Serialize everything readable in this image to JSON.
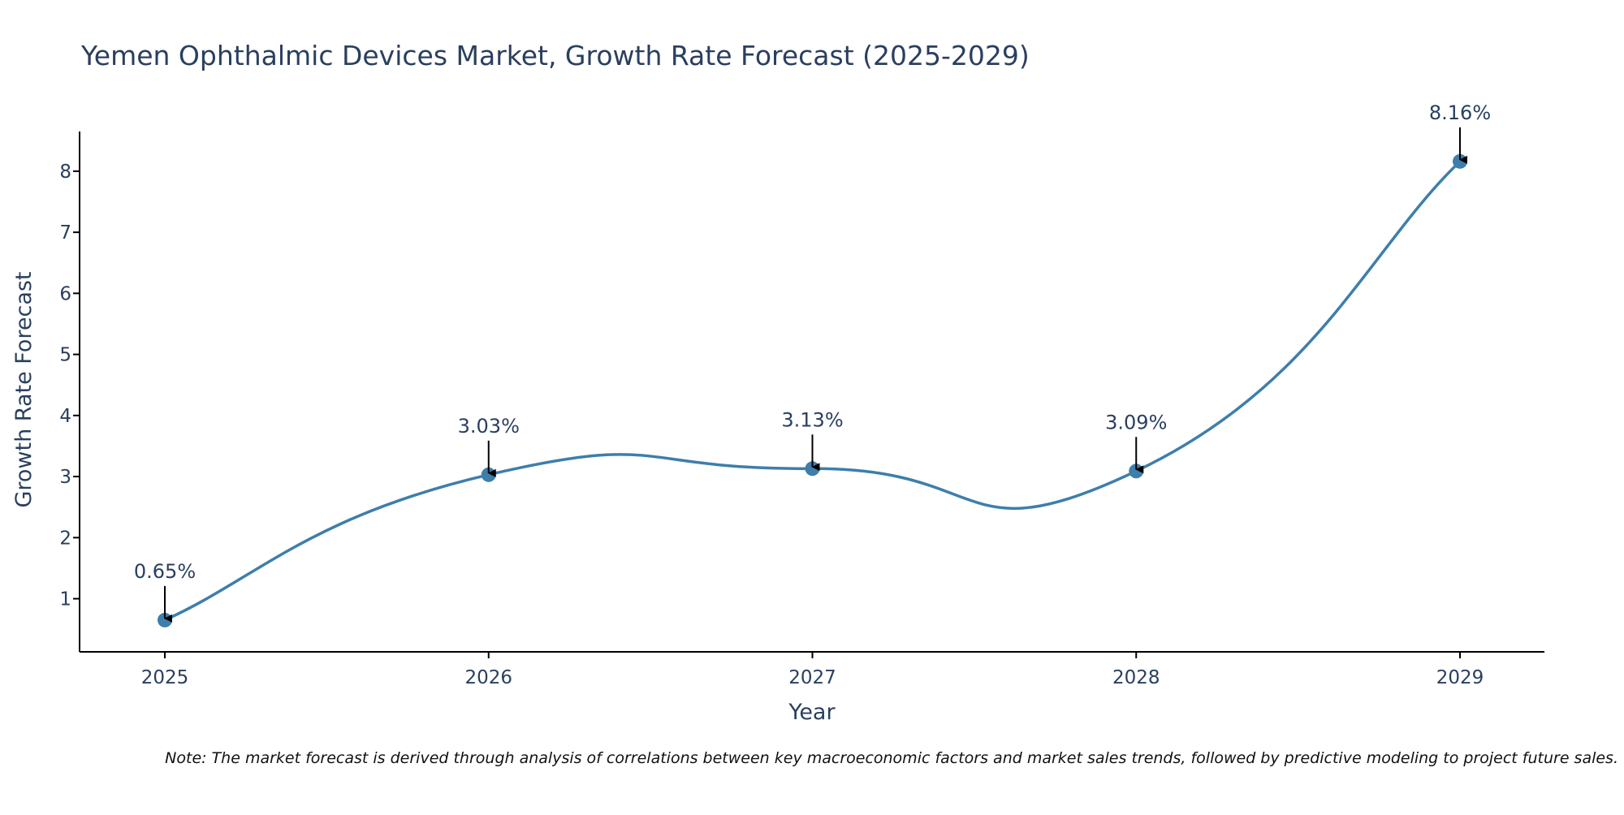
{
  "chart_data": {
    "type": "line",
    "title": "Yemen Ophthalmic Devices Market, Growth Rate Forecast (2025-2029)",
    "xlabel": "Year",
    "ylabel": "Growth Rate Forecast",
    "categories": [
      "2025",
      "2026",
      "2027",
      "2028",
      "2029"
    ],
    "values": [
      0.65,
      3.03,
      3.13,
      3.09,
      8.16
    ],
    "data_labels": [
      "0.65%",
      "3.03%",
      "3.13%",
      "3.09%",
      "8.16%"
    ],
    "yticks": [
      "1",
      "2",
      "3",
      "4",
      "5",
      "6",
      "7",
      "8"
    ],
    "ytick_values": [
      1,
      2,
      3,
      4,
      5,
      6,
      7,
      8
    ],
    "ylim": [
      0.13,
      8.65
    ],
    "grid": false,
    "legend": "none",
    "line_color": "#3d7eab",
    "marker_color": "#3d7eab",
    "arrow_color": "#000000",
    "axis_color": "#000000",
    "text_color": "#2a3f5f"
  },
  "note": "Note: The market forecast is derived through analysis of correlations between key macroeconomic factors and market sales trends, followed by predictive modeling to project future sales."
}
